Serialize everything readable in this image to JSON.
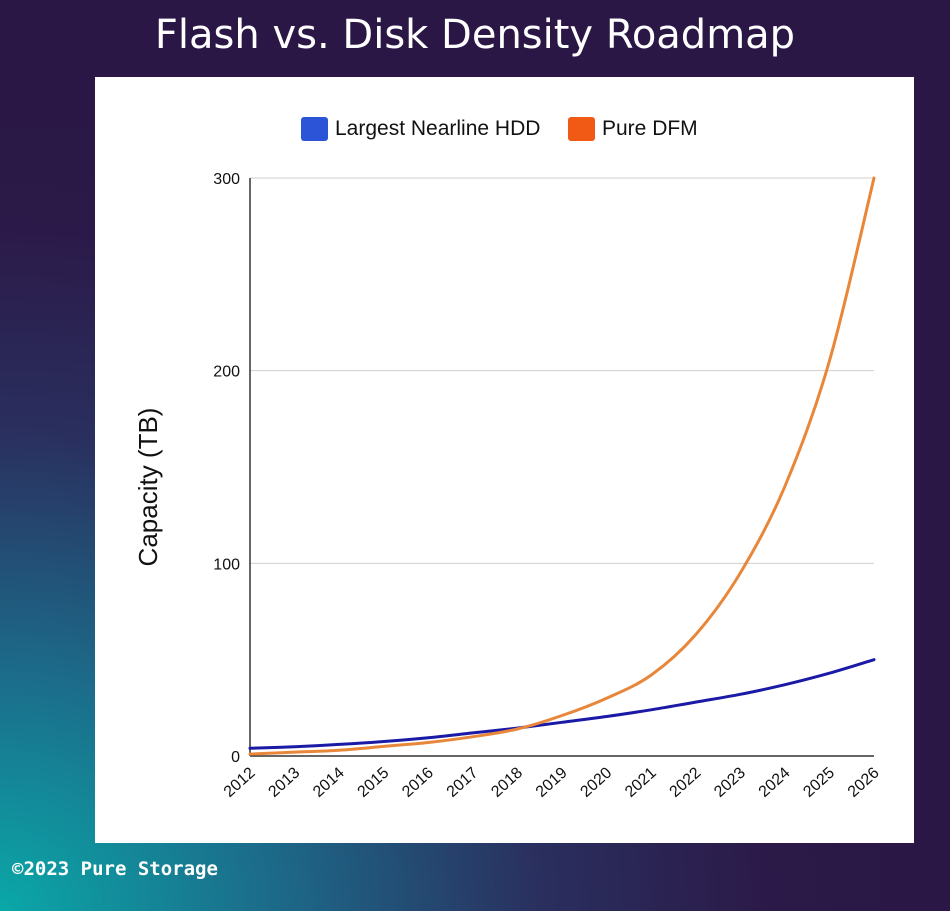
{
  "title": "Flash vs. Disk Density Roadmap",
  "footer": "©2023 Pure Storage",
  "chart_data": {
    "type": "line",
    "title": "Flash vs. Disk Density Roadmap",
    "xlabel": "",
    "ylabel": "Capacity (TB)",
    "ylim": [
      0,
      300
    ],
    "yticks": [
      0,
      100,
      200,
      300
    ],
    "categories": [
      "2012",
      "2013",
      "2014",
      "2015",
      "2016",
      "2017",
      "2018",
      "2019",
      "2020",
      "2021",
      "2022",
      "2023",
      "2024",
      "2025",
      "2026"
    ],
    "x": [
      2012,
      2026
    ],
    "series": [
      {
        "name": "Largest Nearline HDD",
        "color": "#1a1aa6",
        "legend_color": "#2b55d6",
        "values": [
          4,
          4.8,
          6,
          7.5,
          9.5,
          12,
          14.5,
          17.5,
          20.5,
          24,
          28,
          32,
          37,
          43,
          50
        ]
      },
      {
        "name": "Pure DFM",
        "color": "#e8873a",
        "legend_color": "#f05a14",
        "values": [
          1,
          2,
          3,
          5,
          7,
          10,
          14,
          21,
          30,
          42,
          63,
          95,
          140,
          205,
          300
        ]
      }
    ],
    "grid": true,
    "legend": "top-center"
  }
}
